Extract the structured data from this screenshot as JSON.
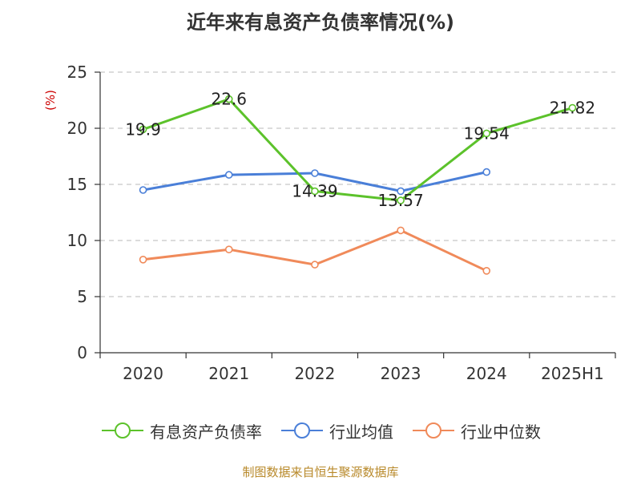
{
  "chart_data": {
    "type": "line",
    "title": "近年来有息资产负债率情况(%)",
    "ylabel": "(%)",
    "categories": [
      "2020",
      "2021",
      "2022",
      "2023",
      "2024",
      "2025H1"
    ],
    "ylim": [
      0,
      25
    ],
    "yticks": [
      0,
      5,
      10,
      15,
      20,
      25
    ],
    "grid": true,
    "legend_position": "bottom",
    "series": [
      {
        "name": "有息资产负债率",
        "color": "#5cc22b",
        "values": [
          19.9,
          22.6,
          14.39,
          13.57,
          19.54,
          21.82
        ],
        "labels": [
          "19.9",
          "22.6",
          "14.39",
          "13.57",
          "19.54",
          "21.82"
        ]
      },
      {
        "name": "行业均值",
        "color": "#4a7fd8",
        "values": [
          14.5,
          15.85,
          16.0,
          14.4,
          16.1,
          null
        ]
      },
      {
        "name": "行业中位数",
        "color": "#f08a5a",
        "values": [
          8.3,
          9.2,
          7.85,
          10.9,
          7.3,
          null
        ]
      }
    ]
  },
  "source_note": "制图数据来自恒生聚源数据库"
}
